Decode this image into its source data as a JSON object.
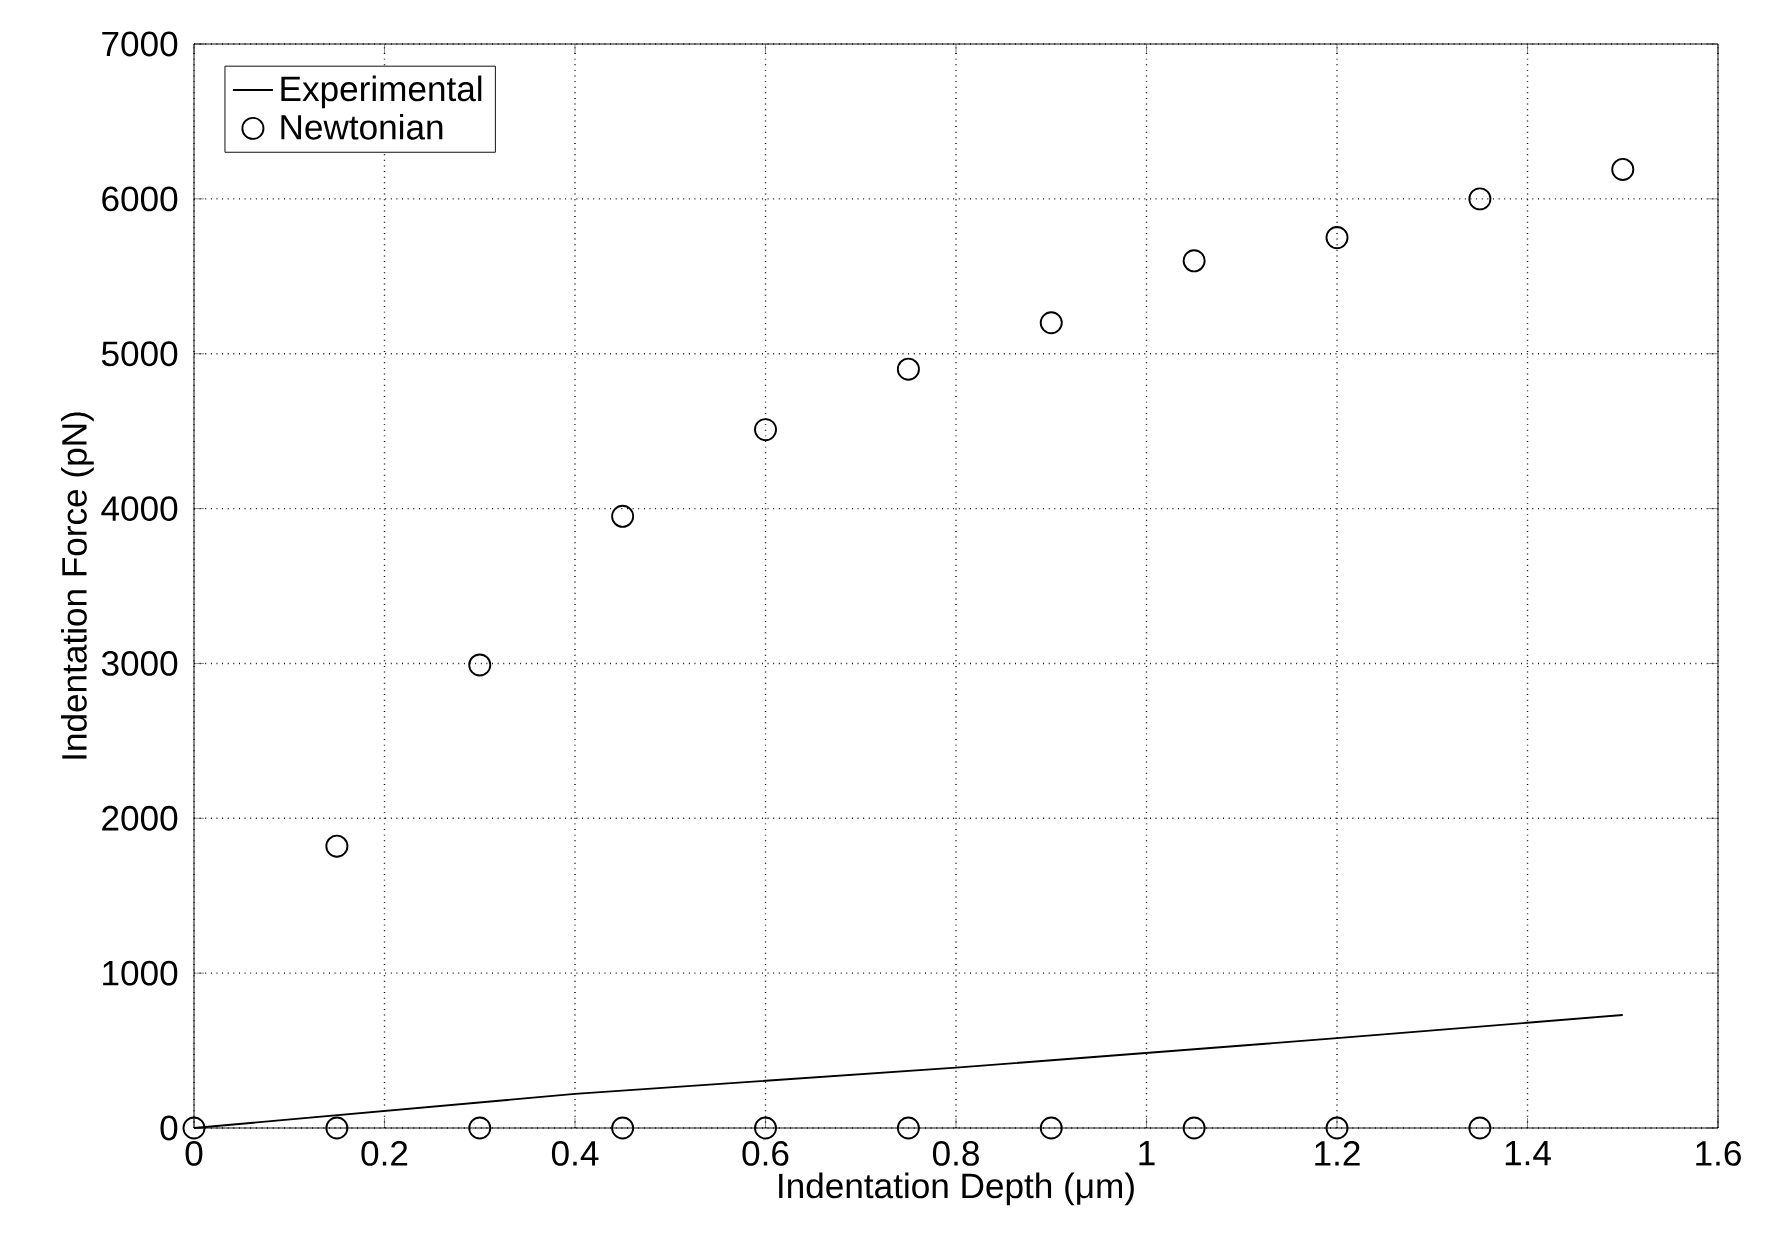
{
  "chart_data": {
    "type": "scatter",
    "xlabel": "Indentation Depth (μm)",
    "ylabel": "Indentation Force (pN)",
    "xlim": [
      0,
      1.6
    ],
    "ylim": [
      0,
      7000
    ],
    "xticks": [
      0,
      0.2,
      0.4,
      0.6,
      0.8,
      1,
      1.2,
      1.4,
      1.6
    ],
    "yticks": [
      0,
      1000,
      2000,
      3000,
      4000,
      5000,
      6000,
      7000
    ],
    "grid": true,
    "legend": "top left",
    "series": [
      {
        "name": "Experimental",
        "type": "line",
        "color": "#000000",
        "marker": "none",
        "line_style": "solid",
        "x": [
          0,
          0.4,
          0.8,
          1.2,
          1.5
        ],
        "values": [
          0,
          220,
          390,
          580,
          730
        ]
      },
      {
        "name": "Newtonian",
        "color": "#000000",
        "marker": "circle",
        "x": [
          0.15,
          0.3,
          0.45,
          0.6,
          0.75,
          0.9,
          1.05,
          1.2,
          1.35,
          1.5,
          0,
          0.15,
          0.3,
          0.45,
          0.6,
          0.75,
          0.9,
          1.05,
          1.2,
          1.35
        ],
        "values": [
          1820,
          2990,
          3950,
          4510,
          4900,
          5200,
          5600,
          5750,
          6000,
          6190,
          0,
          0,
          0,
          0,
          0,
          0,
          0,
          0,
          0,
          0
        ]
      }
    ]
  }
}
